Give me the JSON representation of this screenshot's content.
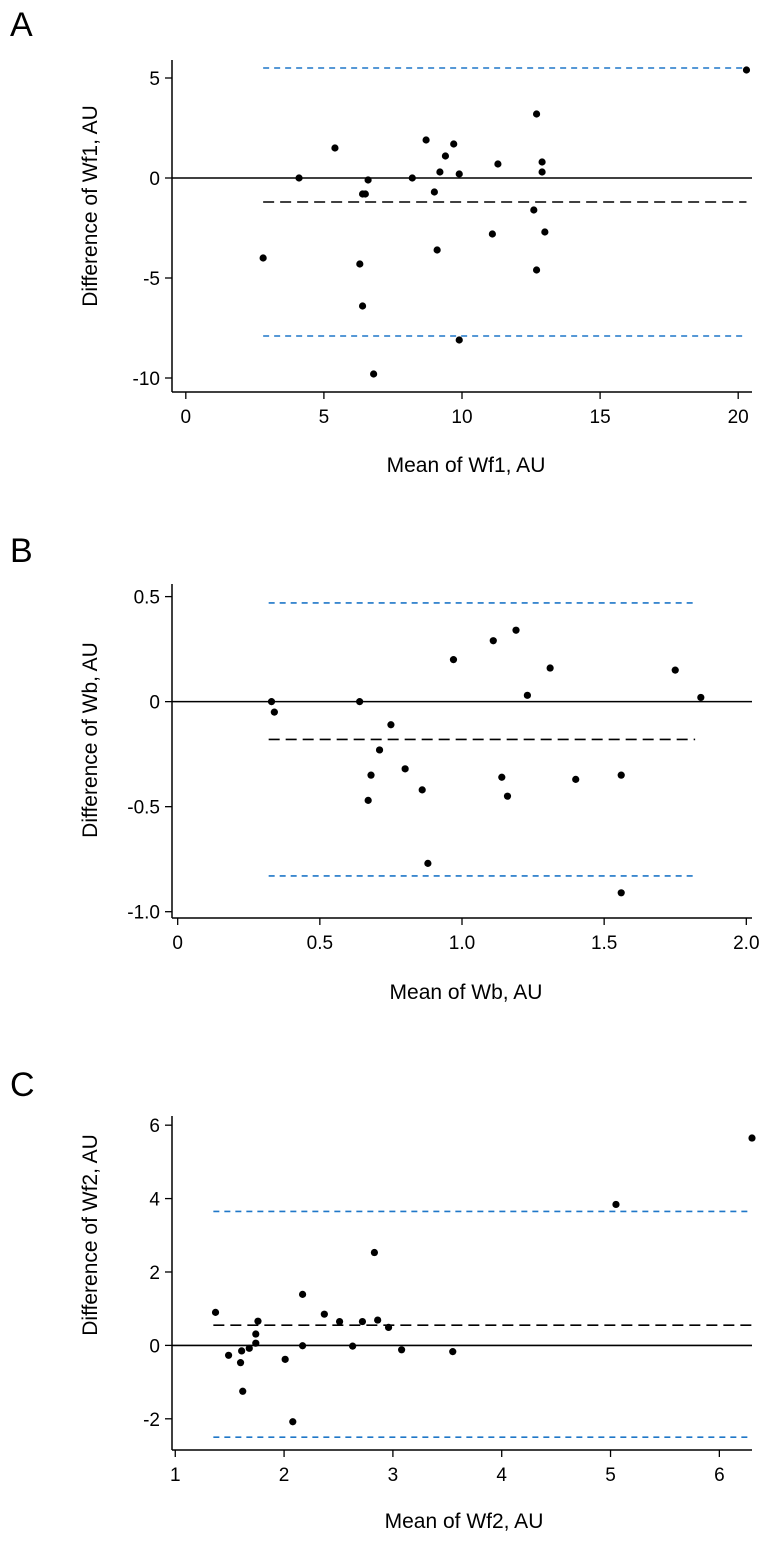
{
  "chart_data": [
    {
      "type": "scatter",
      "panel": "A",
      "xlabel": "Mean of Wf1, AU",
      "ylabel": "Difference of Wf1, AU",
      "xlim": [
        -0.5,
        20.5
      ],
      "ylim": [
        -10.7,
        5.9
      ],
      "xticks": [
        0,
        5,
        10,
        15,
        20
      ],
      "yticks": [
        5,
        0,
        -5,
        -10
      ],
      "tick_labels_x": [
        "0",
        "5",
        "10",
        "15",
        "20"
      ],
      "tick_labels_y": [
        "5",
        "0",
        "-5",
        "-10"
      ],
      "reference_lines": {
        "zero": 0,
        "mean_difference": -1.2,
        "upper_limit": 5.5,
        "lower_limit": -7.9,
        "span": [
          2.8,
          20.3
        ]
      },
      "colors": {
        "points": "#000000",
        "limits": "#1f77c8",
        "mean": "#000000",
        "zero": "#000000"
      },
      "points": [
        {
          "x": 2.8,
          "y": -4.0
        },
        {
          "x": 4.1,
          "y": 0.0
        },
        {
          "x": 5.4,
          "y": 1.5
        },
        {
          "x": 6.3,
          "y": -4.3
        },
        {
          "x": 6.4,
          "y": -0.8
        },
        {
          "x": 6.4,
          "y": -6.4
        },
        {
          "x": 6.5,
          "y": -0.8
        },
        {
          "x": 6.6,
          "y": -0.1
        },
        {
          "x": 6.8,
          "y": -9.8
        },
        {
          "x": 8.2,
          "y": 0.0
        },
        {
          "x": 8.7,
          "y": 1.9
        },
        {
          "x": 9.0,
          "y": -0.7
        },
        {
          "x": 9.1,
          "y": -3.6
        },
        {
          "x": 9.2,
          "y": 0.3
        },
        {
          "x": 9.4,
          "y": 1.1
        },
        {
          "x": 9.7,
          "y": 1.7
        },
        {
          "x": 9.9,
          "y": 0.2
        },
        {
          "x": 9.9,
          "y": -8.1
        },
        {
          "x": 11.1,
          "y": -2.8
        },
        {
          "x": 11.3,
          "y": 0.7
        },
        {
          "x": 12.6,
          "y": -1.6
        },
        {
          "x": 12.7,
          "y": 3.2
        },
        {
          "x": 12.7,
          "y": -4.6
        },
        {
          "x": 12.9,
          "y": 0.8
        },
        {
          "x": 12.9,
          "y": 0.3
        },
        {
          "x": 13.0,
          "y": -2.7
        },
        {
          "x": 20.3,
          "y": 5.4
        }
      ]
    },
    {
      "type": "scatter",
      "panel": "B",
      "xlabel": "Mean of Wb, AU",
      "ylabel": "Difference of Wb, AU",
      "xlim": [
        -0.02,
        2.02
      ],
      "ylim": [
        -1.03,
        0.56
      ],
      "xticks": [
        0,
        0.5,
        1.0,
        1.5,
        2.0
      ],
      "yticks": [
        0.5,
        0,
        -0.5,
        -1.0
      ],
      "tick_labels_x": [
        "0",
        "0.5",
        "1.0",
        "1.5",
        "2.0"
      ],
      "tick_labels_y": [
        "0.5",
        "0",
        "-0.5",
        "-1.0"
      ],
      "reference_lines": {
        "zero": 0,
        "mean_difference": -0.18,
        "upper_limit": 0.47,
        "lower_limit": -0.83,
        "span": [
          0.32,
          1.82
        ]
      },
      "colors": {
        "points": "#000000",
        "limits": "#1f77c8",
        "mean": "#000000",
        "zero": "#000000"
      },
      "points": [
        {
          "x": 0.33,
          "y": 0.0
        },
        {
          "x": 0.34,
          "y": -0.05
        },
        {
          "x": 0.64,
          "y": 0.0
        },
        {
          "x": 0.67,
          "y": -0.47
        },
        {
          "x": 0.68,
          "y": -0.35
        },
        {
          "x": 0.71,
          "y": -0.23
        },
        {
          "x": 0.75,
          "y": -0.11
        },
        {
          "x": 0.8,
          "y": -0.32
        },
        {
          "x": 0.86,
          "y": -0.42
        },
        {
          "x": 0.88,
          "y": -0.77
        },
        {
          "x": 0.97,
          "y": 0.2
        },
        {
          "x": 1.11,
          "y": 0.29
        },
        {
          "x": 1.14,
          "y": -0.36
        },
        {
          "x": 1.16,
          "y": -0.45
        },
        {
          "x": 1.19,
          "y": 0.34
        },
        {
          "x": 1.23,
          "y": 0.03
        },
        {
          "x": 1.31,
          "y": 0.16
        },
        {
          "x": 1.4,
          "y": -0.37
        },
        {
          "x": 1.56,
          "y": -0.35
        },
        {
          "x": 1.56,
          "y": -0.91
        },
        {
          "x": 1.75,
          "y": 0.15
        },
        {
          "x": 1.84,
          "y": 0.02
        }
      ]
    },
    {
      "type": "scatter",
      "panel": "C",
      "xlabel": "Mean of Wf2, AU",
      "ylabel": "Difference of Wf2, AU",
      "xlim": [
        0.97,
        6.3
      ],
      "ylim": [
        -2.85,
        6.25
      ],
      "xticks": [
        1,
        2,
        3,
        4,
        5,
        6
      ],
      "yticks": [
        6,
        4,
        2,
        0,
        -2
      ],
      "tick_labels_x": [
        "1",
        "2",
        "3",
        "4",
        "5",
        "6"
      ],
      "tick_labels_y": [
        "6",
        "4",
        "2",
        "0",
        "-2"
      ],
      "reference_lines": {
        "zero": 0,
        "mean_difference": 0.55,
        "upper_limit": 3.65,
        "lower_limit": -2.5,
        "span": [
          1.35,
          6.3
        ]
      },
      "colors": {
        "points": "#000000",
        "limits": "#1f77c8",
        "mean": "#000000",
        "zero": "#000000"
      },
      "points": [
        {
          "x": 1.37,
          "y": 0.9
        },
        {
          "x": 1.49,
          "y": -0.27
        },
        {
          "x": 1.6,
          "y": -0.47
        },
        {
          "x": 1.61,
          "y": -0.15
        },
        {
          "x": 1.62,
          "y": -1.25
        },
        {
          "x": 1.68,
          "y": -0.08
        },
        {
          "x": 1.74,
          "y": 0.06
        },
        {
          "x": 1.74,
          "y": 0.31
        },
        {
          "x": 1.76,
          "y": 0.66
        },
        {
          "x": 2.01,
          "y": -0.38
        },
        {
          "x": 2.08,
          "y": -2.08
        },
        {
          "x": 2.17,
          "y": -0.01
        },
        {
          "x": 2.17,
          "y": 1.39
        },
        {
          "x": 2.37,
          "y": 0.85
        },
        {
          "x": 2.51,
          "y": 0.65
        },
        {
          "x": 2.63,
          "y": -0.02
        },
        {
          "x": 2.72,
          "y": 0.65
        },
        {
          "x": 2.83,
          "y": 2.53
        },
        {
          "x": 2.86,
          "y": 0.69
        },
        {
          "x": 2.96,
          "y": 0.49
        },
        {
          "x": 3.08,
          "y": -0.12
        },
        {
          "x": 3.55,
          "y": -0.17
        },
        {
          "x": 5.05,
          "y": 3.84
        },
        {
          "x": 6.3,
          "y": 5.65
        }
      ]
    }
  ]
}
